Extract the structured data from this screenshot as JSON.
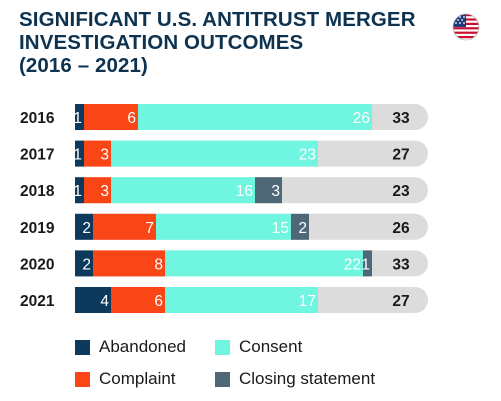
{
  "title_lines": [
    "SIGNIFICANT U.S. ANTITRUST MERGER",
    "INVESTIGATION OUTCOMES",
    "(2016 – 2021)"
  ],
  "flag_icon": "us-flag-icon",
  "colors": {
    "abandoned": "#0d3a5c",
    "complaint": "#fa4616",
    "consent": "#6ff5e0",
    "closing": "#4f6878",
    "track": "#dcdcdc",
    "title": "#0d3350"
  },
  "legend": [
    {
      "key": "abandoned",
      "label": "Abandoned"
    },
    {
      "key": "consent",
      "label": "Consent"
    },
    {
      "key": "complaint",
      "label": "Complaint"
    },
    {
      "key": "closing",
      "label": "Closing statement"
    }
  ],
  "chart_data": {
    "type": "bar",
    "orientation": "horizontal",
    "stacked": true,
    "categories": [
      "2016",
      "2017",
      "2018",
      "2019",
      "2020",
      "2021"
    ],
    "series": [
      {
        "key": "abandoned",
        "name": "Abandoned",
        "values": [
          1,
          1,
          1,
          2,
          2,
          4
        ]
      },
      {
        "key": "complaint",
        "name": "Complaint",
        "values": [
          6,
          3,
          3,
          7,
          8,
          6
        ]
      },
      {
        "key": "consent",
        "name": "Consent",
        "values": [
          26,
          23,
          16,
          15,
          22,
          17
        ]
      },
      {
        "key": "closing",
        "name": "Closing statement",
        "values": [
          0,
          0,
          3,
          2,
          1,
          0
        ]
      }
    ],
    "totals": [
      33,
      27,
      23,
      26,
      33,
      27
    ],
    "xlim": [
      0,
      33
    ],
    "legend_position": "bottom"
  }
}
